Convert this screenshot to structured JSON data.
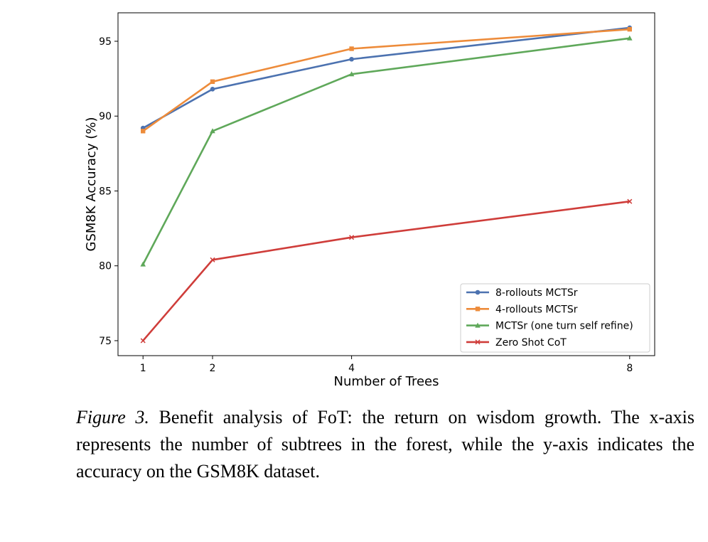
{
  "chart_data": {
    "type": "line",
    "xlabel": "Number of Trees",
    "ylabel": "GSM8K Accuracy (%)",
    "x": [
      1,
      2,
      4,
      8
    ],
    "xticks": [
      "1",
      "2",
      "4",
      "8"
    ],
    "yticks": [
      "75",
      "80",
      "85",
      "90",
      "95"
    ],
    "xlim": [
      0.64,
      8.36
    ],
    "ylim": [
      74.0,
      96.9
    ],
    "grid": false,
    "legend_position": "lower-right",
    "series": [
      {
        "name": "8-rollouts MCTSr",
        "color": "#4c72b0",
        "marker": "circle",
        "values": [
          89.2,
          91.8,
          93.8,
          95.9
        ]
      },
      {
        "name": "4-rollouts MCTSr",
        "color": "#ed8b3a",
        "marker": "square",
        "values": [
          89.0,
          92.3,
          94.5,
          95.8
        ]
      },
      {
        "name": "MCTSr (one turn self refine)",
        "color": "#5fa85a",
        "marker": "triangle",
        "values": [
          80.1,
          89.0,
          92.8,
          95.2
        ]
      },
      {
        "name": "Zero Shot CoT",
        "color": "#cf3d3a",
        "marker": "x",
        "values": [
          75.0,
          80.4,
          81.9,
          84.3
        ]
      }
    ]
  },
  "caption": {
    "label": "Figure 3.",
    "text": " Benefit analysis of FoT: the return on wisdom growth. The x-axis represents the number of subtrees in the forest, while the y-axis indicates the accuracy on the GSM8K dataset."
  }
}
